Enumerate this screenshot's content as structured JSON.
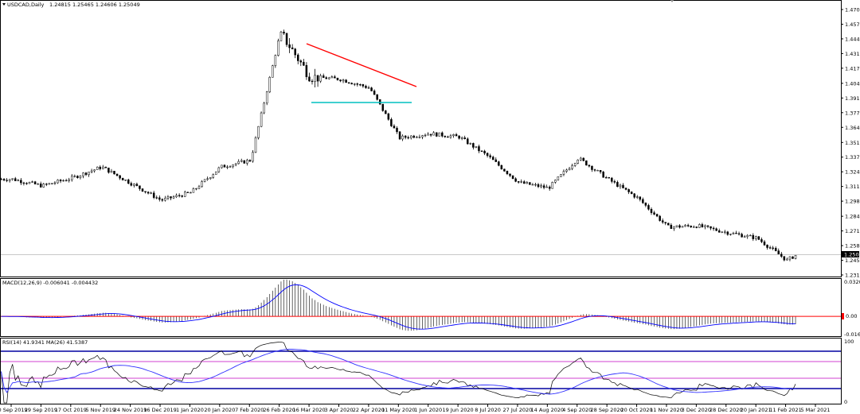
{
  "header": {
    "menu_icon": "triangle-down-icon",
    "symbol_title": "USDCAD,Daily",
    "ohlc": "1.24815 1.25465 1.24606 1.25049"
  },
  "macd": {
    "title": "MACD(12,26,9) -0.006041 -0.004432",
    "axis_top": "0.032018",
    "axis_zero": "0.00",
    "axis_bottom": "-0.01651"
  },
  "rsi": {
    "title": "RSI(14) 41.9341   MA(26) 41.5387",
    "axis_top": "100",
    "axis_bottom": "0"
  },
  "price_axis": {
    "current_price": "1.25049",
    "labels": [
      "1.47060",
      "1.45740",
      "1.44420",
      "1.43100",
      "1.41780",
      "1.40420",
      "1.39100",
      "1.37780",
      "1.36460",
      "1.35100",
      "1.33780",
      "1.32460",
      "1.31140",
      "1.29820",
      "1.28460",
      "1.27140",
      "1.25820",
      "1.24500",
      "1.23180"
    ]
  },
  "dates": [
    "10 Sep 2019",
    "29 Sep 2019",
    "17 Oct 2019",
    "5 Nov 2019",
    "24 Nov 2019",
    "16 Dec 2019",
    "1 Jan 2020",
    "20 Jan 2020",
    "7 Feb 2020",
    "26 Feb 2020",
    "16 Mar 2020",
    "3 Apr 2020",
    "22 Apr 2020",
    "11 May 2020",
    "1 Jun 2020",
    "19 Jun 2020",
    "8 Jul 2020",
    "27 Jul 2020",
    "14 Aug 2020",
    "4 Sep 2020",
    "28 Sep 2020",
    "20 Oct 2020",
    "11 Nov 2020",
    "3 Dec 2020",
    "28 Dec 2020",
    "20 Jan 2021",
    "11 Feb 2021",
    "5 Mar 2021"
  ],
  "colors": {
    "candles": "#000000",
    "resistance_line": "#ff0000",
    "support_line": "#00c0c0",
    "macd_signal": "#0000ff",
    "macd_zero": "#ff0000",
    "rsi_levels": "#0000a0",
    "rsi_mid_levels": "#c000c0",
    "rsi_ma": "#3030ff"
  },
  "chart_data": {
    "type": "candlestick",
    "symbol": "USDCAD",
    "timeframe": "Daily",
    "last_ohlc": {
      "open": 1.24815,
      "high": 1.25465,
      "low": 1.24606,
      "close": 1.25049
    },
    "price_range": [
      1.2318,
      1.4706
    ],
    "close_path": [
      {
        "date": "10 Sep 2019",
        "close": 1.318
      },
      {
        "date": "17 Oct 2019",
        "close": 1.312
      },
      {
        "date": "5 Nov 2019",
        "close": 1.319
      },
      {
        "date": "24 Nov 2019",
        "close": 1.329
      },
      {
        "date": "16 Dec 2019",
        "close": 1.314
      },
      {
        "date": "1 Jan 2020",
        "close": 1.299
      },
      {
        "date": "20 Jan 2020",
        "close": 1.306
      },
      {
        "date": "7 Feb 2020",
        "close": 1.329
      },
      {
        "date": "26 Feb 2020",
        "close": 1.335
      },
      {
        "date": "16 Mar 2020",
        "close": 1.45
      },
      {
        "date": "3 Apr 2020",
        "close": 1.41
      },
      {
        "date": "22 Apr 2020",
        "close": 1.408
      },
      {
        "date": "11 May 2020",
        "close": 1.4
      },
      {
        "date": "1 Jun 2020",
        "close": 1.355
      },
      {
        "date": "19 Jun 2020",
        "close": 1.359
      },
      {
        "date": "8 Jul 2020",
        "close": 1.356
      },
      {
        "date": "27 Jul 2020",
        "close": 1.338
      },
      {
        "date": "14 Aug 2020",
        "close": 1.315
      },
      {
        "date": "4 Sep 2020",
        "close": 1.31
      },
      {
        "date": "28 Sep 2020",
        "close": 1.337
      },
      {
        "date": "20 Oct 2020",
        "close": 1.318
      },
      {
        "date": "11 Nov 2020",
        "close": 1.301
      },
      {
        "date": "3 Dec 2020",
        "close": 1.275
      },
      {
        "date": "28 Dec 2020",
        "close": 1.276
      },
      {
        "date": "20 Jan 2021",
        "close": 1.27
      },
      {
        "date": "11 Feb 2021",
        "close": 1.265
      },
      {
        "date": "5 Mar 2021",
        "close": 1.245
      },
      {
        "date": "5 Mar 2021 +",
        "close": 1.25049
      }
    ],
    "annotations": [
      {
        "type": "trendline",
        "color": "#ff0000",
        "from": {
          "date": "16 Mar 2020",
          "price": 1.434
        },
        "to": {
          "date": "1 Jun 2020",
          "price": 1.404
        }
      },
      {
        "type": "horizontal",
        "color": "#00c0c0",
        "from": {
          "date": "16 Mar 2020",
          "price": 1.389
        },
        "to": {
          "date": "1 Jun 2020",
          "price": 1.389
        }
      }
    ],
    "indicators": [
      {
        "name": "MACD",
        "params": [
          12,
          26,
          9
        ],
        "main": -0.006041,
        "signal": -0.004432,
        "range": [
          -0.01651,
          0.032018
        ]
      },
      {
        "name": "RSI",
        "period": 14,
        "value": 41.9341,
        "ma_period": 26,
        "ma_value": 41.5387,
        "range": [
          0,
          100
        ]
      }
    ]
  }
}
